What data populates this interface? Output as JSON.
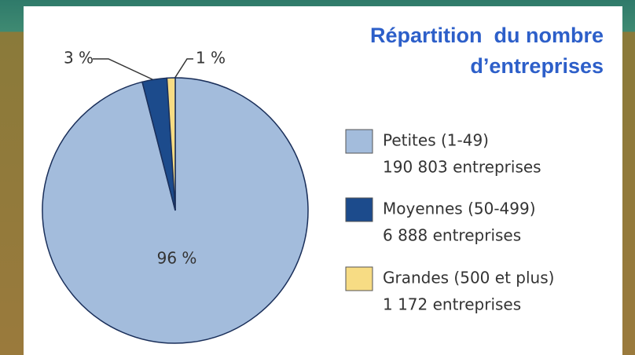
{
  "chart_data": {
    "type": "pie",
    "title": "Répartition  du nombre d’entreprises",
    "categories": [
      "Petites (1-49)",
      "Moyennes (50-499)",
      "Grandes (500 et plus)"
    ],
    "legend_details": [
      "190 803 entreprises",
      "6 888 entreprises",
      "1 172 entreprises"
    ],
    "values": [
      96,
      3,
      1
    ],
    "value_labels": [
      "96 %",
      "3 %",
      "1 %"
    ],
    "colors": [
      "#a3bcdc",
      "#1c4b8c",
      "#f7dc84"
    ]
  }
}
